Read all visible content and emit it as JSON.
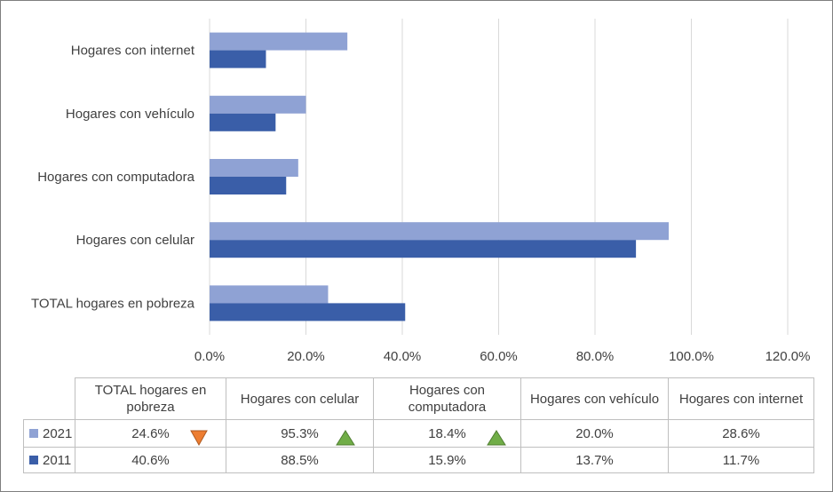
{
  "chart_data": {
    "type": "bar",
    "orientation": "horizontal",
    "categories": [
      "Hogares con internet",
      "Hogares con vehículo",
      "Hogares con computadora",
      "Hogares con celular",
      "TOTAL hogares en pobreza"
    ],
    "series": [
      {
        "name": "2021",
        "values": [
          28.6,
          20.0,
          18.4,
          95.3,
          24.6
        ],
        "color": "#8fa2d4"
      },
      {
        "name": "2011",
        "values": [
          11.7,
          13.7,
          15.9,
          88.5,
          40.6
        ],
        "color": "#3a5ea8"
      }
    ],
    "xlim": [
      0,
      120
    ],
    "xticks": [
      0,
      20,
      40,
      60,
      80,
      100,
      120
    ],
    "tick_labels": [
      "0.0%",
      "20.0%",
      "40.0%",
      "60.0%",
      "80.0%",
      "100.0%",
      "120.0%"
    ],
    "grid": true,
    "legend": "data-table-below"
  },
  "table": {
    "headers": [
      "TOTAL hogares en pobreza",
      "Hogares con celular",
      "Hogares con computadora",
      "Hogares con vehículo",
      "Hogares con internet"
    ],
    "rows": [
      {
        "label": "2021",
        "color": "#8fa2d4",
        "cells": [
          "24.6%",
          "95.3%",
          "18.4%",
          "20.0%",
          "28.6%"
        ],
        "markers": [
          "down",
          "up",
          "up",
          null,
          null
        ]
      },
      {
        "label": "2011",
        "color": "#3a5ea8",
        "cells": [
          "40.6%",
          "88.5%",
          "15.9%",
          "13.7%",
          "11.7%"
        ],
        "markers": [
          null,
          null,
          null,
          null,
          null
        ]
      }
    ],
    "marker_colors": {
      "up": "#70ad47",
      "down": "#ed7d31"
    }
  }
}
